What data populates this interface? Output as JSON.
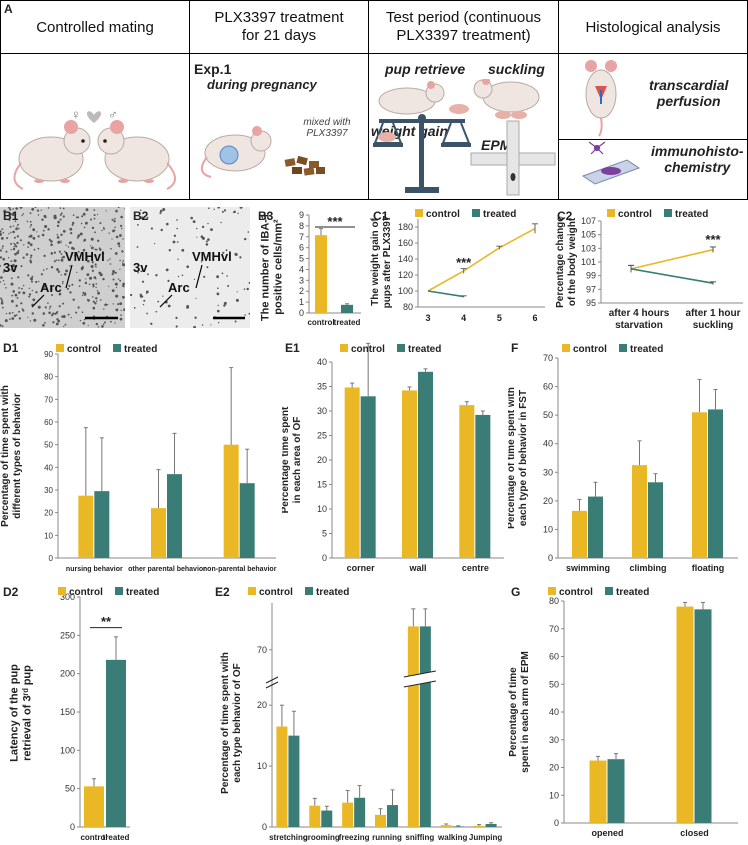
{
  "panel_a": {
    "label": "A",
    "columns": [
      {
        "header": "Controlled mating"
      },
      {
        "header_line1": "PLX3397 treatment",
        "header_line2": "for 21 days",
        "exp": "Exp.1",
        "during": "during pregnancy",
        "mixed1": "mixed with",
        "mixed2": "PLX3397"
      },
      {
        "header_line1": "Test period (continuous",
        "header_line2": "PLX3397 treatment)",
        "pup": "pup retrieve",
        "suck": "suckling",
        "weight": "weight gain",
        "epm": "EPM"
      },
      {
        "header": "Histological analysis",
        "trans1": "transcardial",
        "trans2": "perfusion",
        "immuno1": "immunohisto-",
        "immuno2": "chemistry"
      }
    ],
    "colors": {
      "mouse": "#efe6e2",
      "ear": "#e8a3a3",
      "balance": "#3b5368",
      "food": "#8b5a2b"
    }
  },
  "micro": {
    "b1": {
      "label": "B1",
      "t3v": "3v",
      "arc": "Arc",
      "vmh": "VMHvl"
    },
    "b2": {
      "label": "B2",
      "t3v": "3v",
      "arc": "Arc",
      "vmh": "VMHvl"
    }
  },
  "colors": {
    "control": "#e9b824",
    "treated": "#3a7d76"
  },
  "chart_data": [
    {
      "id": "B3",
      "type": "bar",
      "categories": [
        "control",
        "treated"
      ],
      "values": [
        7.15,
        0.75
      ],
      "errors": [
        0.6,
        0.1
      ],
      "ylim": [
        0,
        9
      ],
      "yticks": [
        0,
        1,
        2,
        3,
        4,
        5,
        6,
        7,
        8,
        9
      ],
      "ylabel_lines": [
        "The number of IBA-1",
        "positive cells/mm²"
      ],
      "annotation": "***"
    },
    {
      "id": "C1",
      "type": "line",
      "x": [
        3,
        4,
        5,
        6
      ],
      "ylim": [
        80,
        190
      ],
      "yticks": [
        80,
        100,
        120,
        140,
        160,
        180
      ],
      "ylabel_lines": [
        "The weight gain of",
        "pups after PLX3397"
      ],
      "series": [
        {
          "name": "control",
          "x": [
            3,
            4,
            5,
            6
          ],
          "values": [
            100,
            125,
            154,
            178
          ],
          "errors": [
            0,
            3,
            2,
            6
          ]
        },
        {
          "name": "treated",
          "x": [
            3,
            4
          ],
          "values": [
            100,
            93
          ],
          "errors": [
            0,
            1
          ]
        }
      ],
      "annotation": "***"
    },
    {
      "id": "C2",
      "type": "line",
      "categories": [
        "after 4 hours starvation",
        "after 1 hour suckling"
      ],
      "cat_lines": [
        [
          "after 4 hours",
          "starvation"
        ],
        [
          "after 1 hour",
          "suckling"
        ]
      ],
      "ylim": [
        95,
        107
      ],
      "yticks": [
        95,
        97,
        99,
        101,
        103,
        105,
        107
      ],
      "ylabel_lines": [
        "Percentage change",
        "of the body weight"
      ],
      "series": [
        {
          "name": "control",
          "values": [
            100,
            102.8
          ],
          "errors": [
            0.5,
            0.4
          ]
        },
        {
          "name": "treated",
          "values": [
            100,
            97.9
          ],
          "errors": [
            0.5,
            0.2
          ]
        }
      ],
      "annotation": "***"
    },
    {
      "id": "D1",
      "type": "bar",
      "categories": [
        "nursing behavior",
        "other parental behavior",
        "non-parental behavior"
      ],
      "ylim": [
        0,
        90
      ],
      "yticks": [
        0,
        10,
        20,
        30,
        40,
        50,
        60,
        70,
        80,
        90
      ],
      "ylabel_lines": [
        "Percentage of time spent with",
        "different types of behavior"
      ],
      "series": [
        {
          "name": "control",
          "values": [
            27.5,
            22,
            50
          ],
          "errors": [
            30,
            17,
            34
          ]
        },
        {
          "name": "treated",
          "values": [
            29.5,
            37,
            33
          ],
          "errors": [
            23.5,
            18,
            15
          ]
        }
      ]
    },
    {
      "id": "E1",
      "type": "bar",
      "categories": [
        "corner",
        "wall",
        "centre"
      ],
      "ylim": [
        0,
        40
      ],
      "yticks": [
        0,
        5,
        10,
        15,
        20,
        25,
        30,
        35,
        40
      ],
      "ylabel_lines": [
        "Percentage time spent",
        "in each area of OF"
      ],
      "series": [
        {
          "name": "control",
          "values": [
            34.8,
            34.2,
            31.2
          ],
          "errors": [
            0.9,
            0.7,
            0.7
          ]
        },
        {
          "name": "treated",
          "values": [
            33,
            38,
            29.2
          ],
          "errors": [
            10.8,
            0.6,
            0.8
          ]
        }
      ]
    },
    {
      "id": "F",
      "type": "bar",
      "categories": [
        "swimming",
        "climbing",
        "floating"
      ],
      "ylim": [
        0,
        70
      ],
      "yticks": [
        0,
        10,
        20,
        30,
        40,
        50,
        60,
        70
      ],
      "ylabel_lines": [
        "Percentage of time spent with",
        "each type of behavior in FST"
      ],
      "series": [
        {
          "name": "control",
          "values": [
            16.5,
            32.5,
            51
          ],
          "errors": [
            4,
            8.5,
            11.5
          ]
        },
        {
          "name": "treated",
          "values": [
            21.5,
            26.5,
            52
          ],
          "errors": [
            5,
            3,
            7
          ]
        }
      ]
    },
    {
      "id": "D2",
      "type": "bar",
      "categories": [
        "control",
        "treated"
      ],
      "values": [
        53,
        218
      ],
      "errors": [
        10,
        30
      ],
      "ylim": [
        0,
        300
      ],
      "yticks": [
        0,
        50,
        100,
        150,
        200,
        250,
        300
      ],
      "ylabel_lines": [
        "Latency of the pup",
        "retrieval of 3ʳᵈ pup"
      ],
      "annotation": "**"
    },
    {
      "id": "E2",
      "type": "bar",
      "categories": [
        "stretching",
        "grooming",
        "freezing",
        "running",
        "sniffing",
        "walking",
        "Jumping"
      ],
      "yticks_low": [
        0,
        10,
        20
      ],
      "ytick_high": 70,
      "ylabel_lines": [
        "Percentage of time spent with",
        "each type behavior of OF"
      ],
      "series": [
        {
          "name": "control",
          "values": [
            16.5,
            3.5,
            4,
            2,
            74,
            0.3,
            0.2
          ],
          "errors": [
            3.5,
            1.2,
            2,
            1,
            3,
            0.2,
            0.2
          ]
        },
        {
          "name": "treated",
          "values": [
            15,
            2.7,
            4.8,
            3.6,
            74,
            0.1,
            0.5
          ],
          "errors": [
            4,
            0.7,
            2,
            2.5,
            3,
            0.1,
            0.2
          ]
        }
      ]
    },
    {
      "id": "G",
      "type": "bar",
      "categories": [
        "opened",
        "closed"
      ],
      "ylim": [
        0,
        80
      ],
      "yticks": [
        0,
        10,
        20,
        30,
        40,
        50,
        60,
        70,
        80
      ],
      "ylabel_lines": [
        "Percentage of time",
        "spent in each arm of EPM"
      ],
      "series": [
        {
          "name": "control",
          "values": [
            22.5,
            78
          ],
          "errors": [
            1.5,
            1.5
          ]
        },
        {
          "name": "treated",
          "values": [
            23,
            77
          ],
          "errors": [
            2,
            2.5
          ]
        }
      ]
    }
  ],
  "panel_labels": {
    "b3": "B3",
    "c1": "C1",
    "c2": "C2",
    "d1": "D1",
    "e1": "E1",
    "f": "F",
    "d2": "D2",
    "e2": "E2",
    "g": "G"
  },
  "legend": {
    "control": "control",
    "treated": "treated"
  }
}
